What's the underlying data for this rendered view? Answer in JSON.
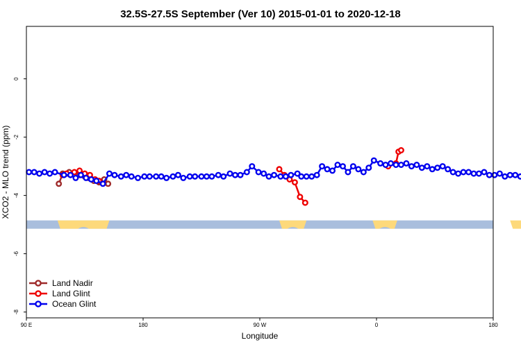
{
  "chart_data": {
    "type": "line",
    "title": "32.5S-27.5S September (Ver 10)   2015-01-01 to 2020-12-18",
    "xlabel": "Longitude",
    "ylabel": "XCO2 - MLO trend (ppm)",
    "xlim": [
      90,
      450
    ],
    "ylim": [
      -8.2,
      1.8
    ],
    "x_ticks": [
      {
        "value": 90,
        "label": "90 E"
      },
      {
        "value": 180,
        "label": "180"
      },
      {
        "value": 270,
        "label": "90 W"
      },
      {
        "value": 360,
        "label": "0"
      },
      {
        "value": 450,
        "label": "180"
      }
    ],
    "x_ticks_extra": [
      {
        "value": 450,
        "label": "90 E",
        "position_value": 540
      }
    ],
    "y_ticks": [
      0,
      -2,
      -4,
      -6,
      -8
    ],
    "grid": false,
    "legend_position": "bottom-left",
    "land_strip": {
      "y_center": -5.0,
      "ocean_color": "#a9bedd",
      "land_color": "#fdd97b",
      "land_segments": [
        [
          114,
          154
        ],
        [
          357,
          376
        ],
        [
          285,
          306
        ],
        [
          463,
          502
        ]
      ]
    },
    "series": [
      {
        "name": "Land Nadir",
        "color": "#9e2a2a",
        "points": [
          [
            115,
            -3.6
          ],
          [
            118,
            -3.25
          ],
          [
            123,
            -3.2
          ],
          [
            131,
            -3.3
          ],
          [
            135,
            -3.35
          ],
          [
            138,
            -3.4
          ],
          [
            142,
            -3.5
          ],
          [
            146,
            -3.55
          ],
          [
            150,
            -3.45
          ],
          [
            153,
            -3.6
          ]
        ]
      },
      {
        "name": "Land Glint",
        "color": "#ee0000",
        "points": [
          [
            118,
            -3.3
          ],
          [
            121,
            -3.25
          ],
          [
            127,
            -3.2
          ],
          [
            131,
            -3.15
          ],
          [
            135,
            -3.25
          ],
          [
            139,
            -3.3
          ],
          [
            143,
            -3.45
          ],
          [
            146,
            -3.5
          ],
          [
            285,
            -3.1
          ],
          [
            289,
            -3.3
          ],
          [
            293,
            -3.45
          ],
          [
            297,
            -3.55
          ],
          [
            301,
            -4.05
          ],
          [
            305,
            -4.25
          ],
          [
            369,
            -3.0
          ],
          [
            375,
            -2.9
          ],
          [
            377,
            -2.5
          ],
          [
            379,
            -2.45
          ]
        ]
      },
      {
        "name": "Ocean Glint",
        "color": "#0000ee",
        "points": [
          [
            92,
            -3.2
          ],
          [
            96,
            -3.2
          ],
          [
            100,
            -3.25
          ],
          [
            104,
            -3.2
          ],
          [
            108,
            -3.25
          ],
          [
            112,
            -3.2
          ],
          [
            119,
            -3.3
          ],
          [
            124,
            -3.3
          ],
          [
            128,
            -3.4
          ],
          [
            132,
            -3.3
          ],
          [
            136,
            -3.4
          ],
          [
            140,
            -3.45
          ],
          [
            144,
            -3.5
          ],
          [
            149,
            -3.6
          ],
          [
            154,
            -3.25
          ],
          [
            158,
            -3.3
          ],
          [
            163,
            -3.35
          ],
          [
            167,
            -3.3
          ],
          [
            171,
            -3.35
          ],
          [
            176,
            -3.4
          ],
          [
            181,
            -3.35
          ],
          [
            185,
            -3.35
          ],
          [
            190,
            -3.35
          ],
          [
            194,
            -3.35
          ],
          [
            198,
            -3.4
          ],
          [
            203,
            -3.35
          ],
          [
            207,
            -3.3
          ],
          [
            211,
            -3.4
          ],
          [
            216,
            -3.35
          ],
          [
            220,
            -3.35
          ],
          [
            225,
            -3.35
          ],
          [
            229,
            -3.35
          ],
          [
            233,
            -3.35
          ],
          [
            238,
            -3.3
          ],
          [
            242,
            -3.35
          ],
          [
            247,
            -3.25
          ],
          [
            251,
            -3.3
          ],
          [
            255,
            -3.3
          ],
          [
            260,
            -3.2
          ],
          [
            264,
            -3.0
          ],
          [
            269,
            -3.2
          ],
          [
            273,
            -3.25
          ],
          [
            277,
            -3.35
          ],
          [
            281,
            -3.3
          ],
          [
            286,
            -3.35
          ],
          [
            290,
            -3.35
          ],
          [
            294,
            -3.3
          ],
          [
            299,
            -3.25
          ],
          [
            302,
            -3.35
          ],
          [
            306,
            -3.35
          ],
          [
            310,
            -3.35
          ],
          [
            314,
            -3.3
          ],
          [
            318,
            -3.0
          ],
          [
            322,
            -3.1
          ],
          [
            326,
            -3.15
          ],
          [
            330,
            -2.95
          ],
          [
            334,
            -3.0
          ],
          [
            338,
            -3.2
          ],
          [
            342,
            -3.0
          ],
          [
            346,
            -3.1
          ],
          [
            350,
            -3.2
          ],
          [
            354,
            -3.05
          ],
          [
            358,
            -2.8
          ],
          [
            363,
            -2.9
          ],
          [
            367,
            -2.95
          ],
          [
            371,
            -2.9
          ],
          [
            375,
            -2.95
          ],
          [
            379,
            -2.95
          ],
          [
            383,
            -2.9
          ],
          [
            387,
            -3.0
          ],
          [
            391,
            -2.95
          ],
          [
            395,
            -3.05
          ],
          [
            399,
            -3.0
          ],
          [
            403,
            -3.1
          ],
          [
            407,
            -3.05
          ],
          [
            411,
            -3.0
          ],
          [
            415,
            -3.1
          ],
          [
            419,
            -3.2
          ],
          [
            423,
            -3.25
          ],
          [
            427,
            -3.2
          ],
          [
            431,
            -3.2
          ],
          [
            435,
            -3.25
          ],
          [
            439,
            -3.25
          ],
          [
            443,
            -3.2
          ],
          [
            447,
            -3.3
          ],
          [
            451,
            -3.3
          ],
          [
            455,
            -3.25
          ],
          [
            459,
            -3.35
          ],
          [
            463,
            -3.3
          ],
          [
            467,
            -3.3
          ],
          [
            471,
            -3.35
          ],
          [
            475,
            -3.45
          ],
          [
            479,
            -3.6
          ],
          [
            483,
            -3.25
          ],
          [
            487,
            -3.3
          ],
          [
            491,
            -3.35
          ],
          [
            495,
            -3.3
          ],
          [
            499,
            -3.4
          ]
        ]
      }
    ]
  }
}
